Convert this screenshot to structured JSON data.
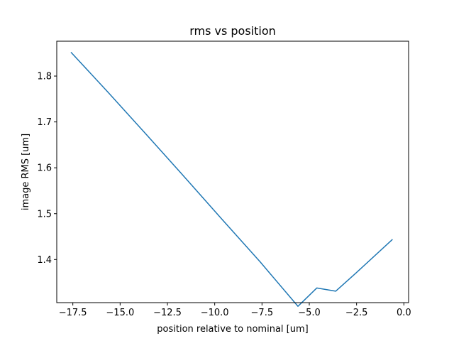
{
  "chart_data": {
    "type": "line",
    "title": "rms vs position",
    "xlabel": "position relative to nominal [um]",
    "ylabel": "image RMS [um]",
    "xlim": [
      -18.35,
      0.25
    ],
    "ylim": [
      1.306,
      1.876
    ],
    "x_ticks": [
      -17.5,
      -15.0,
      -12.5,
      -10.0,
      -7.5,
      -5.0,
      -2.5,
      0.0
    ],
    "x_tick_labels": [
      "−17.5",
      "−15.0",
      "−12.5",
      "−10.0",
      "−7.5",
      "−5.0",
      "−2.5",
      "0.0"
    ],
    "y_ticks": [
      1.4,
      1.5,
      1.6,
      1.7,
      1.8
    ],
    "y_tick_labels": [
      "1.4",
      "1.5",
      "1.6",
      "1.7",
      "1.8"
    ],
    "grid": false,
    "series": [
      {
        "color": "#1f77b4",
        "x": [
          -17.6,
          -15.6,
          -13.6,
          -11.6,
          -9.6,
          -7.6,
          -5.6,
          -4.6,
          -3.6,
          -2.6,
          -0.6
        ],
        "y": [
          1.852,
          1.763,
          1.672,
          1.58,
          1.487,
          1.395,
          1.298,
          1.338,
          1.331,
          1.368,
          1.444
        ]
      }
    ]
  }
}
